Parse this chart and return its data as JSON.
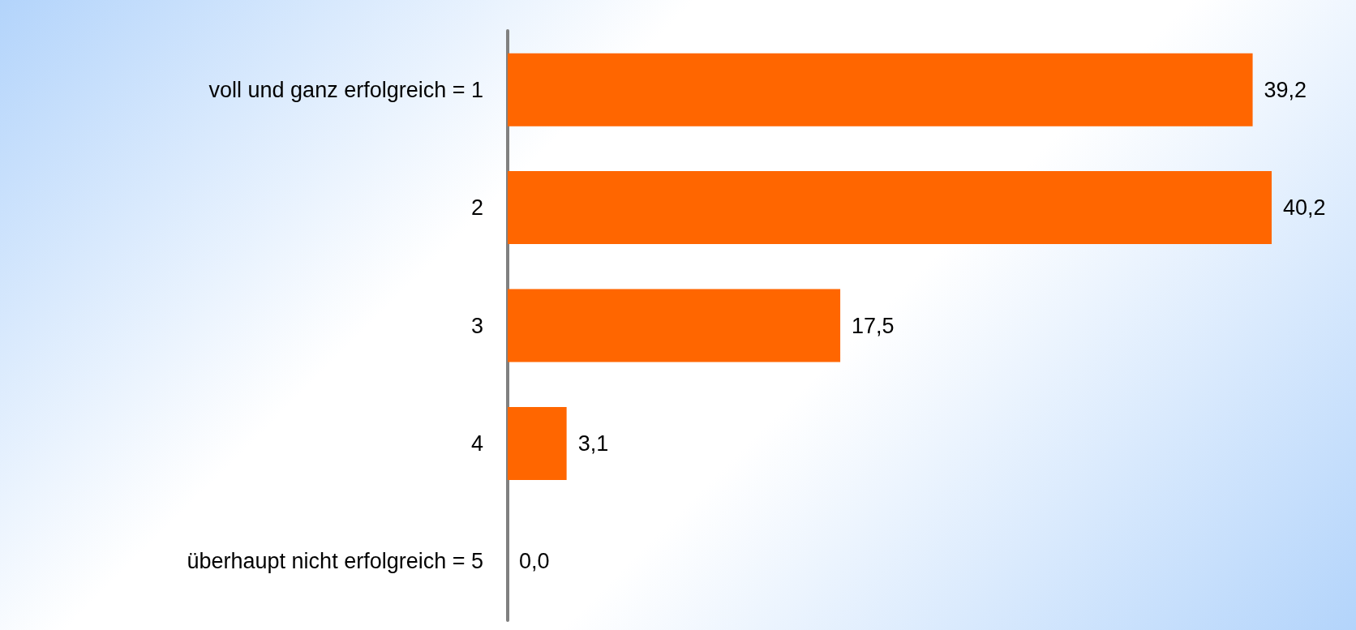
{
  "chart_data": {
    "type": "bar",
    "orientation": "horizontal",
    "categories": [
      "voll und ganz erfolgreich = 1",
      "2",
      "3",
      "4",
      "überhaupt nicht erfolgreich = 5"
    ],
    "values": [
      39.2,
      40.2,
      17.5,
      3.1,
      0.0
    ],
    "value_labels": [
      "39,2",
      "40,2",
      "17,5",
      "3,1",
      "0,0"
    ],
    "color": "#ff6600"
  }
}
